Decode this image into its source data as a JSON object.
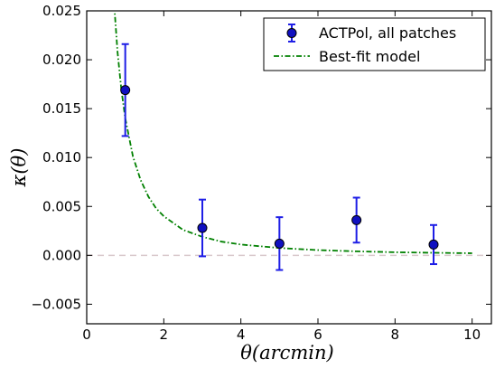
{
  "chart_data": {
    "type": "scatter",
    "xlabel": "θ(arcmin)",
    "ylabel": "κ(θ)",
    "xlim": [
      0,
      10.5
    ],
    "ylim": [
      -0.007,
      0.025
    ],
    "xticks": [
      0,
      2,
      4,
      6,
      8,
      10
    ],
    "xtick_labels": [
      "0",
      "2",
      "4",
      "6",
      "8",
      "10"
    ],
    "yticks": [
      -0.005,
      0.0,
      0.005,
      0.01,
      0.015,
      0.02,
      0.025
    ],
    "ytick_labels": [
      "−0.005",
      "0.000",
      "0.005",
      "0.010",
      "0.015",
      "0.020",
      "0.025"
    ],
    "grid": false,
    "legend_position": "top-right",
    "reference_line": {
      "y": 0.0,
      "style": "dashed",
      "color": "#d9c9cc"
    },
    "series": [
      {
        "name": "ACTPol, all patches",
        "kind": "errorbar",
        "marker_color": "#1010c0",
        "errorbar_color": "#1e1ee6",
        "x": [
          1,
          3,
          5,
          7,
          9
        ],
        "y": [
          0.0169,
          0.0028,
          0.0012,
          0.0036,
          0.0011
        ],
        "yerr": [
          0.0047,
          0.0029,
          0.0027,
          0.0023,
          0.002
        ]
      },
      {
        "name": "Best-fit model",
        "kind": "line",
        "style": "dashdot",
        "color": "#008000",
        "x": [
          0.63,
          0.7,
          0.8,
          0.9,
          1.0,
          1.2,
          1.4,
          1.6,
          1.8,
          2.0,
          2.5,
          3.0,
          3.5,
          4.0,
          5.0,
          6.0,
          7.0,
          8.0,
          9.0,
          10.0
        ],
        "y": [
          0.0313,
          0.0263,
          0.0208,
          0.0169,
          0.014,
          0.0101,
          0.0077,
          0.006,
          0.0048,
          0.004,
          0.0026,
          0.0019,
          0.0014,
          0.0011,
          0.00075,
          0.00054,
          0.00041,
          0.00032,
          0.00026,
          0.00021
        ]
      }
    ]
  }
}
